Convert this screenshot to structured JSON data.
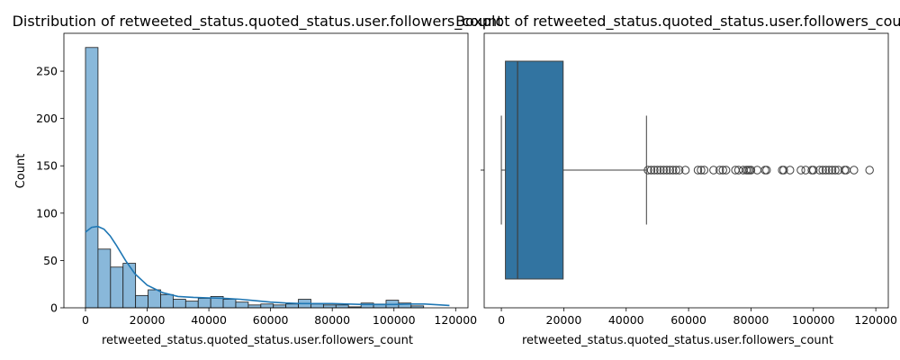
{
  "chart_data": [
    {
      "type": "bar",
      "title": "Distribution of retweeted_status.quoted_status.user.followers_count",
      "xlabel": "retweeted_status.quoted_status.user.followers_count",
      "ylabel": "Count",
      "xlim": [
        -7000,
        124000
      ],
      "ylim": [
        0,
        290
      ],
      "xticks": [
        0,
        20000,
        40000,
        60000,
        80000,
        100000,
        120000
      ],
      "yticks": [
        0,
        50,
        100,
        150,
        200,
        250
      ],
      "bin_start": 0,
      "bin_width": 4060,
      "counts": [
        275,
        62,
        43,
        47,
        13,
        19,
        14,
        9,
        7,
        10,
        12,
        9,
        6,
        3,
        4,
        3,
        4,
        9,
        4,
        3,
        3,
        1,
        5,
        4,
        8,
        5,
        2
      ],
      "kde": {
        "x": [
          0,
          2000,
          4000,
          6000,
          8000,
          10000,
          13000,
          16000,
          20000,
          25000,
          30000,
          35000,
          40000,
          45000,
          50000,
          55000,
          60000,
          65000,
          70000,
          75000,
          80000,
          85000,
          90000,
          95000,
          100000,
          105000,
          110000,
          115000,
          118000
        ],
        "y": [
          80,
          85,
          86,
          83,
          76,
          66,
          50,
          36,
          24,
          16,
          12,
          11,
          10.5,
          10,
          9,
          7.5,
          6,
          5,
          4.5,
          4.5,
          4.5,
          4,
          3.5,
          3.5,
          3.5,
          4,
          4,
          3,
          2.5
        ]
      },
      "bar_color": "#89b8da",
      "line_color": "#1f77b4"
    },
    {
      "type": "box",
      "title": "Boxplot of retweeted_status.quoted_status.user.followers_count",
      "xlabel": "retweeted_status.quoted_status.user.followers_count",
      "xlim": [
        -5500,
        124000
      ],
      "xticks": [
        0,
        20000,
        40000,
        60000,
        80000,
        100000,
        120000
      ],
      "whisker_low": 0,
      "q1": 1300,
      "median": 5200,
      "q3": 19800,
      "whisker_high": 46500,
      "outliers": [
        47000,
        48000,
        49000,
        50000,
        51000,
        52000,
        53000,
        54000,
        55000,
        56000,
        57000,
        59000,
        63000,
        64000,
        65000,
        68000,
        70000,
        71000,
        72000,
        75000,
        76000,
        77500,
        78500,
        79000,
        79500,
        80000,
        82000,
        84500,
        85000,
        90000,
        90500,
        92500,
        96000,
        97500,
        99500,
        100000,
        102000,
        103000,
        104000,
        105000,
        106000,
        107000,
        108000,
        110000,
        110500,
        113000,
        118000
      ],
      "box_color": "#3274a1"
    }
  ]
}
